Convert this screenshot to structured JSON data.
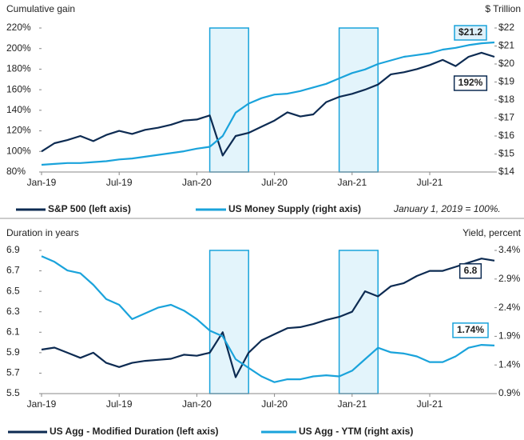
{
  "chart_data": [
    {
      "type": "line",
      "title": "Cumulative gain",
      "y2_title": "$ Trillion",
      "note": "January 1, 2019 = 100%.",
      "x": [
        "2019-01",
        "2019-02",
        "2019-03",
        "2019-04",
        "2019-05",
        "2019-06",
        "2019-07",
        "2019-08",
        "2019-09",
        "2019-10",
        "2019-11",
        "2019-12",
        "2020-01",
        "2020-02",
        "2020-03",
        "2020-04",
        "2020-05",
        "2020-06",
        "2020-07",
        "2020-08",
        "2020-09",
        "2020-10",
        "2020-11",
        "2020-12",
        "2021-01",
        "2021-02",
        "2021-03",
        "2021-04",
        "2021-05",
        "2021-06",
        "2021-07",
        "2021-08",
        "2021-09",
        "2021-10",
        "2021-11",
        "2021-12"
      ],
      "xticks": [
        {
          "value": "2019-01",
          "label": "Jan-19"
        },
        {
          "value": "2019-07",
          "label": "Jul-19"
        },
        {
          "value": "2020-01",
          "label": "Jan-20"
        },
        {
          "value": "2020-07",
          "label": "Jul-20"
        },
        {
          "value": "2021-01",
          "label": "Jan-21"
        },
        {
          "value": "2021-07",
          "label": "Jul-21"
        }
      ],
      "ylim": [
        80,
        220
      ],
      "yticks": [
        {
          "value": 80,
          "label": "80%"
        },
        {
          "value": 100,
          "label": "100%"
        },
        {
          "value": 120,
          "label": "120%"
        },
        {
          "value": 140,
          "label": "140%"
        },
        {
          "value": 160,
          "label": "160%"
        },
        {
          "value": 180,
          "label": "180%"
        },
        {
          "value": 200,
          "label": "200%"
        },
        {
          "value": 220,
          "label": "220%"
        }
      ],
      "y2lim": [
        14,
        22
      ],
      "y2ticks": [
        {
          "value": 14,
          "label": "$14"
        },
        {
          "value": 15,
          "label": "$15"
        },
        {
          "value": 16,
          "label": "$16"
        },
        {
          "value": 17,
          "label": "$17"
        },
        {
          "value": 18,
          "label": "$18"
        },
        {
          "value": 19,
          "label": "$19"
        },
        {
          "value": 20,
          "label": "$20"
        },
        {
          "value": 21,
          "label": "$21"
        },
        {
          "value": 22,
          "label": "$22"
        }
      ],
      "series": [
        {
          "name": "S&P 500 (left axis)",
          "color": "#0d2b52",
          "values": [
            100,
            108,
            111,
            115,
            110,
            116,
            120,
            117,
            121,
            123,
            126,
            130,
            131,
            135,
            96,
            115,
            118,
            124,
            130,
            138,
            134,
            136,
            148,
            153,
            156,
            160,
            165,
            175,
            177,
            180,
            184,
            189,
            183,
            192,
            196,
            192
          ]
        },
        {
          "name": "US Money Supply (right axis)",
          "color": "#1aa3db",
          "axis": "y2",
          "values": [
            14.4,
            14.45,
            14.5,
            14.5,
            14.55,
            14.6,
            14.7,
            14.75,
            14.85,
            14.95,
            15.05,
            15.15,
            15.3,
            15.4,
            16.0,
            17.3,
            17.8,
            18.1,
            18.3,
            18.35,
            18.5,
            18.7,
            18.9,
            19.2,
            19.5,
            19.7,
            20.0,
            20.2,
            20.4,
            20.5,
            20.6,
            20.8,
            20.9,
            21.05,
            21.15,
            21.2
          ]
        }
      ],
      "shaded_periods": [
        {
          "start": "2020-02",
          "end": "2020-05"
        },
        {
          "start": "2020-12",
          "end": "2021-03"
        }
      ],
      "annotations": [
        {
          "text": "$21.2",
          "x": "2021-12",
          "y": 21.2,
          "axis": "y2",
          "color": "#1aa3db"
        },
        {
          "text": "192%",
          "x": "2021-12",
          "y": 192,
          "color": "#0d2b52"
        }
      ]
    },
    {
      "type": "line",
      "title": "Duration in years",
      "y2_title": "Yield, percent",
      "x": [
        "2019-01",
        "2019-02",
        "2019-03",
        "2019-04",
        "2019-05",
        "2019-06",
        "2019-07",
        "2019-08",
        "2019-09",
        "2019-10",
        "2019-11",
        "2019-12",
        "2020-01",
        "2020-02",
        "2020-03",
        "2020-04",
        "2020-05",
        "2020-06",
        "2020-07",
        "2020-08",
        "2020-09",
        "2020-10",
        "2020-11",
        "2020-12",
        "2021-01",
        "2021-02",
        "2021-03",
        "2021-04",
        "2021-05",
        "2021-06",
        "2021-07",
        "2021-08",
        "2021-09",
        "2021-10",
        "2021-11",
        "2021-12"
      ],
      "xticks": [
        {
          "value": "2019-01",
          "label": "Jan-19"
        },
        {
          "value": "2019-07",
          "label": "Jul-19"
        },
        {
          "value": "2020-01",
          "label": "Jan-20"
        },
        {
          "value": "2020-07",
          "label": "Jul-20"
        },
        {
          "value": "2021-01",
          "label": "Jan-21"
        },
        {
          "value": "2021-07",
          "label": "Jul-21"
        }
      ],
      "ylim": [
        5.5,
        6.9
      ],
      "yticks": [
        5.5,
        5.7,
        5.9,
        6.1,
        6.3,
        6.5,
        6.7,
        6.9
      ],
      "y2lim": [
        0.9,
        3.4
      ],
      "y2ticks": [
        {
          "value": 0.9,
          "label": "0.9%"
        },
        {
          "value": 1.4,
          "label": "1.4%"
        },
        {
          "value": 1.9,
          "label": "1.9%"
        },
        {
          "value": 2.4,
          "label": "2.4%"
        },
        {
          "value": 2.9,
          "label": "2.9%"
        },
        {
          "value": 3.4,
          "label": "3.4%"
        }
      ],
      "series": [
        {
          "name": "US Agg - Modified Duration (left axis)",
          "color": "#0d2b52",
          "values": [
            5.93,
            5.95,
            5.9,
            5.85,
            5.9,
            5.8,
            5.76,
            5.8,
            5.82,
            5.83,
            5.84,
            5.88,
            5.87,
            5.9,
            6.1,
            5.66,
            5.9,
            6.02,
            6.08,
            6.14,
            6.15,
            6.18,
            6.22,
            6.25,
            6.3,
            6.5,
            6.45,
            6.55,
            6.58,
            6.65,
            6.7,
            6.7,
            6.74,
            6.78,
            6.82,
            6.8
          ]
        },
        {
          "name": "US Agg - YTM (right axis)",
          "color": "#1aa3db",
          "axis": "y2",
          "values": [
            3.3,
            3.2,
            3.05,
            3.0,
            2.8,
            2.55,
            2.45,
            2.2,
            2.3,
            2.4,
            2.45,
            2.35,
            2.2,
            2.0,
            1.9,
            1.5,
            1.35,
            1.2,
            1.1,
            1.15,
            1.15,
            1.2,
            1.22,
            1.2,
            1.3,
            1.5,
            1.7,
            1.62,
            1.6,
            1.55,
            1.45,
            1.45,
            1.55,
            1.7,
            1.75,
            1.74
          ]
        }
      ],
      "shaded_periods": [
        {
          "start": "2020-02",
          "end": "2020-05"
        },
        {
          "start": "2020-12",
          "end": "2021-03"
        }
      ],
      "annotations": [
        {
          "text": "6.8",
          "x": "2021-12",
          "y": 6.8,
          "color": "#0d2b52"
        },
        {
          "text": "1.74%",
          "x": "2021-12",
          "y": 1.74,
          "axis": "y2",
          "color": "#1aa3db"
        }
      ]
    }
  ]
}
